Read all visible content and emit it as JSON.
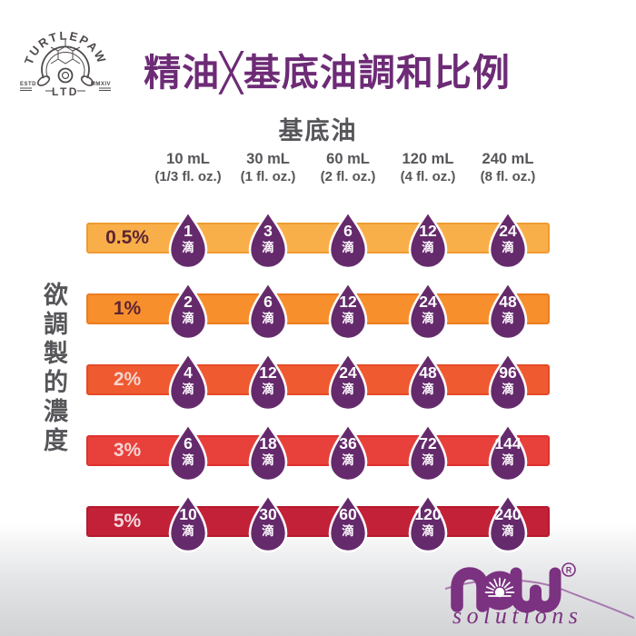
{
  "brand_logo": {
    "name": "TURTLEPAW",
    "ltd": "LTD",
    "estd": "ESTD",
    "year": "MMXIV"
  },
  "title": "精油╳基底油調和比例",
  "table": {
    "column_group_label": "基底油",
    "row_axis_label": "欲調製的濃度",
    "unit": "滴",
    "columns": [
      {
        "volume": "10 mL",
        "ounces": "(1/3 fl. oz.)"
      },
      {
        "volume": "30 mL",
        "ounces": "(1 fl. oz.)"
      },
      {
        "volume": "60 mL",
        "ounces": "(2 fl. oz.)"
      },
      {
        "volume": "120 mL",
        "ounces": "(4 fl. oz.)"
      },
      {
        "volume": "240 mL",
        "ounces": "(8 fl. oz.)"
      }
    ],
    "rows": [
      {
        "percent": "0.5%",
        "drops": [
          "1",
          "3",
          "6",
          "12",
          "24"
        ],
        "bar_color": "#F9AF49",
        "bar_border": "#EF9B31",
        "label_color": "#5D2433"
      },
      {
        "percent": "1%",
        "drops": [
          "2",
          "6",
          "12",
          "24",
          "48"
        ],
        "bar_color": "#F78F2C",
        "bar_border": "#EA7D1F",
        "label_color": "#5D2433"
      },
      {
        "percent": "2%",
        "drops": [
          "4",
          "12",
          "24",
          "48",
          "96"
        ],
        "bar_color": "#EF5A30",
        "bar_border": "#E54A25",
        "label_color": "#F7D4CE"
      },
      {
        "percent": "3%",
        "drops": [
          "6",
          "18",
          "36",
          "72",
          "144"
        ],
        "bar_color": "#E8403A",
        "bar_border": "#DE322E",
        "label_color": "#F7D4D4"
      },
      {
        "percent": "5%",
        "drops": [
          "10",
          "30",
          "60",
          "120",
          "240"
        ],
        "bar_color": "#C22138",
        "bar_border": "#B51A2F",
        "label_color": "#F5D5DB"
      }
    ],
    "drop_color": "#652A6C"
  },
  "footer_logo": {
    "brand": "now",
    "registered": "®",
    "sub_brand": "solutions",
    "color": "#7B3280"
  },
  "colors": {
    "title": "#6D2B76",
    "heading_text": "#56565A",
    "logo_gray": "#4E4A49",
    "background_bottom": "#D2D3D5"
  },
  "chart_data": {
    "type": "table",
    "title": "精油╳基底油調和比例",
    "column_axis_label": "基底油",
    "row_axis_label": "欲調製的濃度",
    "columns": [
      "10 mL (1/3 fl. oz.)",
      "30 mL (1 fl. oz.)",
      "60 mL (2 fl. oz.)",
      "120 mL (4 fl. oz.)",
      "240 mL (8 fl. oz.)"
    ],
    "rows": [
      "0.5%",
      "1%",
      "2%",
      "3%",
      "5%"
    ],
    "values_unit": "滴 (drops)",
    "values": [
      [
        1,
        3,
        6,
        12,
        24
      ],
      [
        2,
        6,
        12,
        24,
        48
      ],
      [
        4,
        12,
        24,
        48,
        96
      ],
      [
        6,
        18,
        36,
        72,
        144
      ],
      [
        10,
        30,
        60,
        120,
        240
      ]
    ],
    "row_color_scale": [
      "#F9AF49",
      "#F78F2C",
      "#EF5A30",
      "#E8403A",
      "#C22138"
    ]
  }
}
